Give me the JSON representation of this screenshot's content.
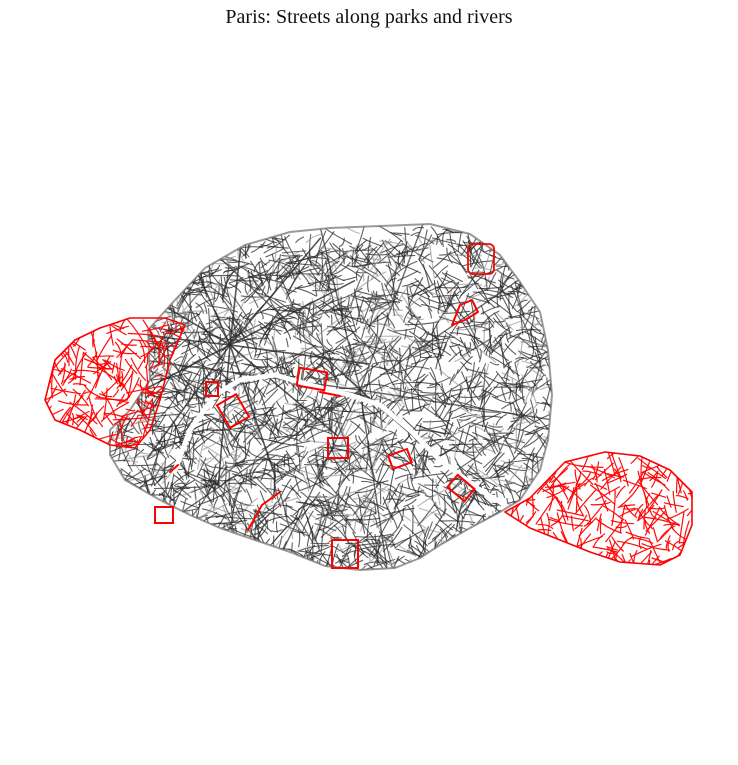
{
  "title": "Paris: Streets along parks and rivers",
  "colors": {
    "background": "#ffffff",
    "street_default": "#2b2b2b",
    "street_outer": "#8a8a8a",
    "street_highlight": "#ff0000"
  },
  "legend": null,
  "axes": {
    "visible": false
  }
}
